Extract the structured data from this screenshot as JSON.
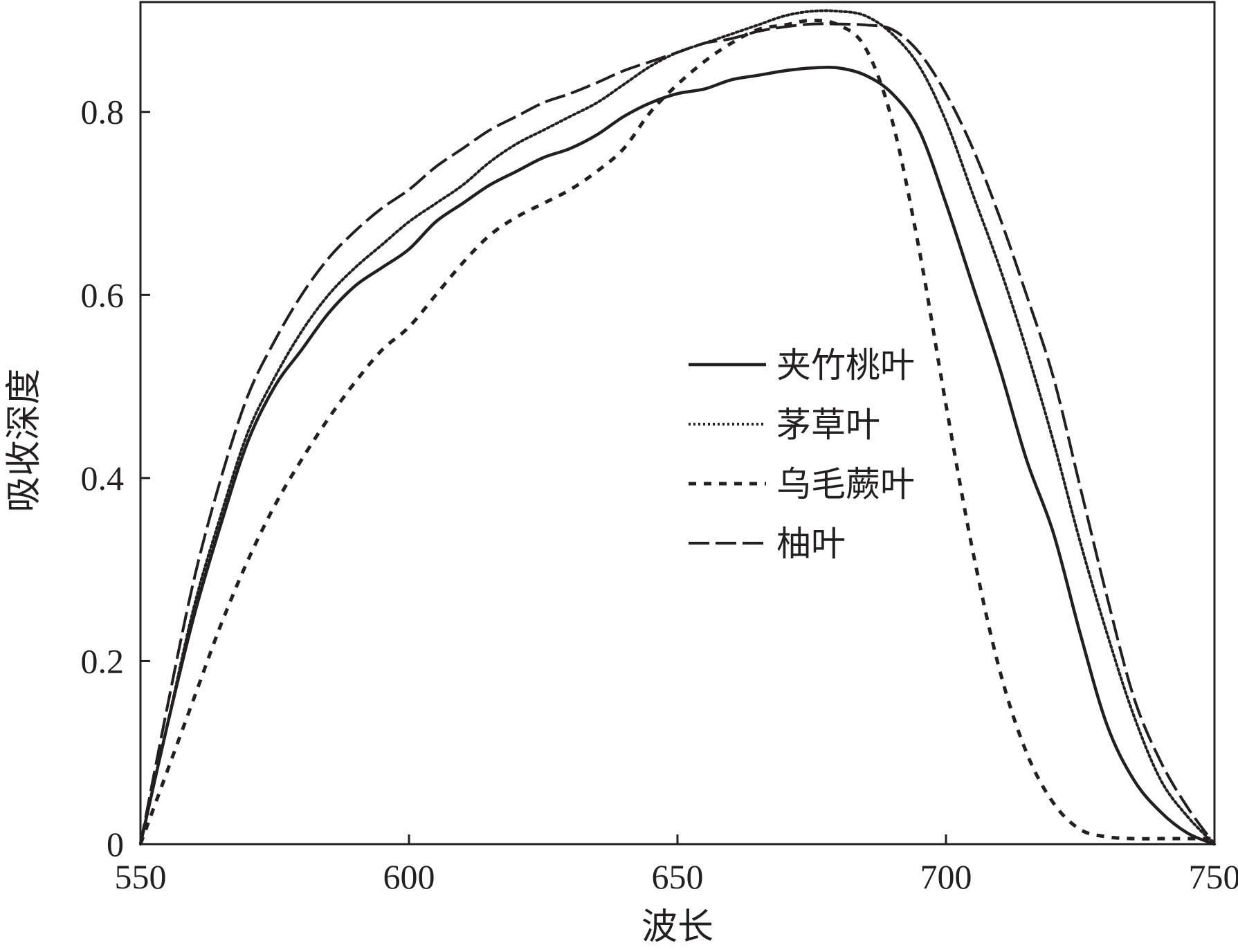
{
  "chart_data": {
    "type": "line",
    "title": "",
    "xlabel": "波长",
    "ylabel": "吸收深度",
    "xlim": [
      550,
      750
    ],
    "ylim": [
      0,
      0.92
    ],
    "xticks": [
      550,
      600,
      650,
      700,
      750
    ],
    "xtick_labels": [
      "550",
      "600",
      "650",
      "700",
      "750"
    ],
    "yticks": [
      0,
      0.2,
      0.4,
      0.6,
      0.8
    ],
    "ytick_labels": [
      "0",
      "0.2",
      "0.4",
      "0.6",
      "0.8"
    ],
    "grid": false,
    "legend_position": "center-right",
    "x": [
      550,
      555,
      560,
      565,
      570,
      575,
      580,
      585,
      590,
      595,
      600,
      605,
      610,
      615,
      620,
      625,
      630,
      635,
      640,
      645,
      650,
      655,
      660,
      665,
      670,
      675,
      680,
      685,
      690,
      695,
      700,
      705,
      710,
      715,
      720,
      725,
      730,
      735,
      740,
      745,
      750
    ],
    "series": [
      {
        "name": "夹竹桃叶",
        "style": "solid",
        "color": "#231f20",
        "values": [
          0.0,
          0.13,
          0.25,
          0.35,
          0.44,
          0.5,
          0.54,
          0.58,
          0.61,
          0.63,
          0.65,
          0.68,
          0.7,
          0.72,
          0.735,
          0.75,
          0.76,
          0.775,
          0.795,
          0.81,
          0.82,
          0.825,
          0.835,
          0.84,
          0.845,
          0.848,
          0.848,
          0.84,
          0.82,
          0.78,
          0.7,
          0.61,
          0.52,
          0.42,
          0.34,
          0.23,
          0.13,
          0.07,
          0.035,
          0.012,
          0.0
        ]
      },
      {
        "name": "茅草叶",
        "style": "dotted",
        "color": "#231f20",
        "values": [
          0.0,
          0.13,
          0.26,
          0.36,
          0.45,
          0.51,
          0.56,
          0.6,
          0.63,
          0.655,
          0.68,
          0.7,
          0.72,
          0.745,
          0.765,
          0.78,
          0.795,
          0.81,
          0.83,
          0.85,
          0.865,
          0.875,
          0.885,
          0.895,
          0.905,
          0.91,
          0.91,
          0.905,
          0.885,
          0.85,
          0.79,
          0.71,
          0.63,
          0.54,
          0.44,
          0.33,
          0.23,
          0.14,
          0.07,
          0.03,
          0.0
        ]
      },
      {
        "name": "乌毛蕨叶",
        "style": "dashed",
        "color": "#231f20",
        "values": [
          0.0,
          0.08,
          0.16,
          0.24,
          0.31,
          0.37,
          0.42,
          0.465,
          0.505,
          0.54,
          0.565,
          0.6,
          0.635,
          0.665,
          0.685,
          0.7,
          0.715,
          0.735,
          0.76,
          0.8,
          0.83,
          0.855,
          0.875,
          0.89,
          0.895,
          0.9,
          0.895,
          0.87,
          0.79,
          0.65,
          0.48,
          0.32,
          0.19,
          0.1,
          0.045,
          0.016,
          0.008,
          0.006,
          0.006,
          0.006,
          0.006
        ]
      },
      {
        "name": "柚叶",
        "style": "longdash",
        "color": "#231f20",
        "values": [
          0.0,
          0.15,
          0.29,
          0.4,
          0.49,
          0.55,
          0.6,
          0.64,
          0.67,
          0.695,
          0.715,
          0.74,
          0.76,
          0.78,
          0.795,
          0.81,
          0.82,
          0.832,
          0.845,
          0.855,
          0.865,
          0.875,
          0.88,
          0.888,
          0.893,
          0.896,
          0.896,
          0.895,
          0.89,
          0.865,
          0.82,
          0.76,
          0.685,
          0.6,
          0.51,
          0.39,
          0.27,
          0.16,
          0.09,
          0.04,
          0.0
        ]
      }
    ]
  }
}
